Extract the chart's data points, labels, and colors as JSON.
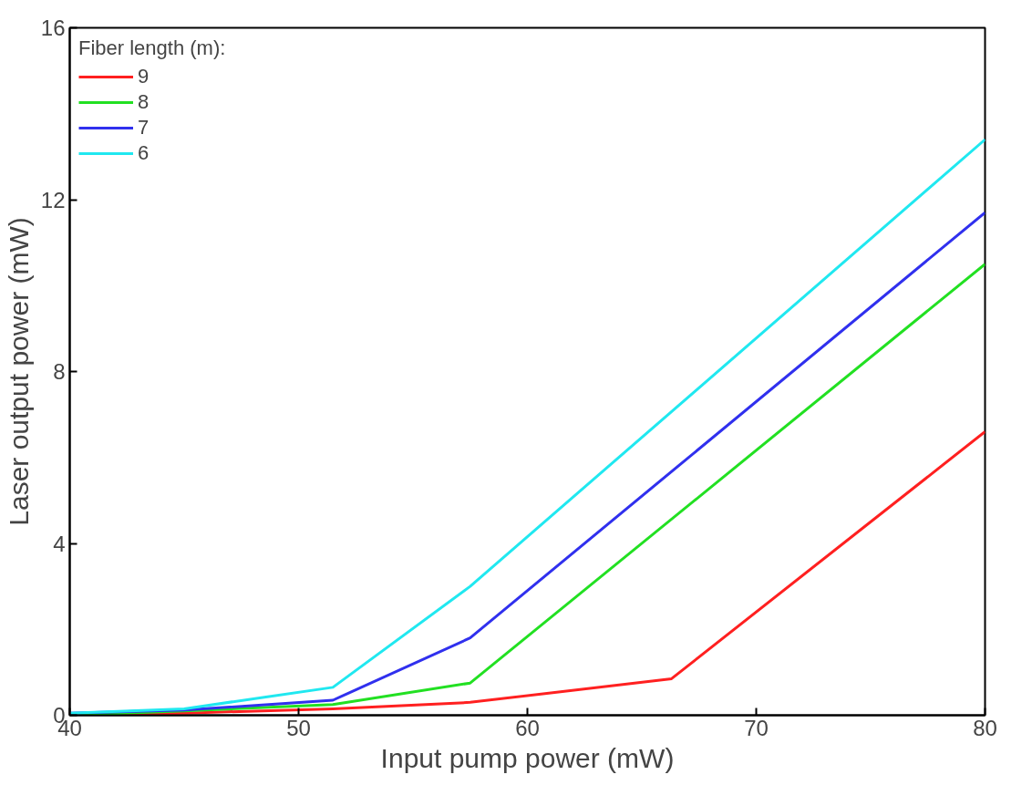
{
  "chart_data": {
    "type": "line",
    "xlabel": "Input pump power (mW)",
    "ylabel": "Laser output power (mW)",
    "legend_title": "Fiber length (m):",
    "legend": "top left",
    "grid": false,
    "series": [
      {
        "name": "9",
        "color": "#ff2020",
        "x": [
          40,
          45,
          51.5,
          57.5,
          66.3,
          80
        ],
        "values": [
          0,
          0.05,
          0.15,
          0.3,
          0.85,
          6.6
        ]
      },
      {
        "name": "8",
        "color": "#22e022",
        "x": [
          40,
          45,
          51.5,
          57.5,
          80
        ],
        "values": [
          0,
          0.1,
          0.25,
          0.75,
          10.5
        ]
      },
      {
        "name": "7",
        "color": "#3030ee",
        "x": [
          40,
          45,
          51.5,
          57.5,
          80
        ],
        "values": [
          0.05,
          0.12,
          0.35,
          1.8,
          11.7
        ]
      },
      {
        "name": "6",
        "color": "#20e8f0",
        "x": [
          40,
          45,
          51.5,
          57.5,
          80
        ],
        "values": [
          0.05,
          0.15,
          0.65,
          3.0,
          13.4
        ]
      }
    ],
    "xlim": [
      40,
      80
    ],
    "ylim": [
      0,
      16
    ],
    "xticks": [
      40,
      50,
      60,
      70,
      80
    ],
    "yticks": [
      0,
      4,
      8,
      12,
      16
    ]
  }
}
